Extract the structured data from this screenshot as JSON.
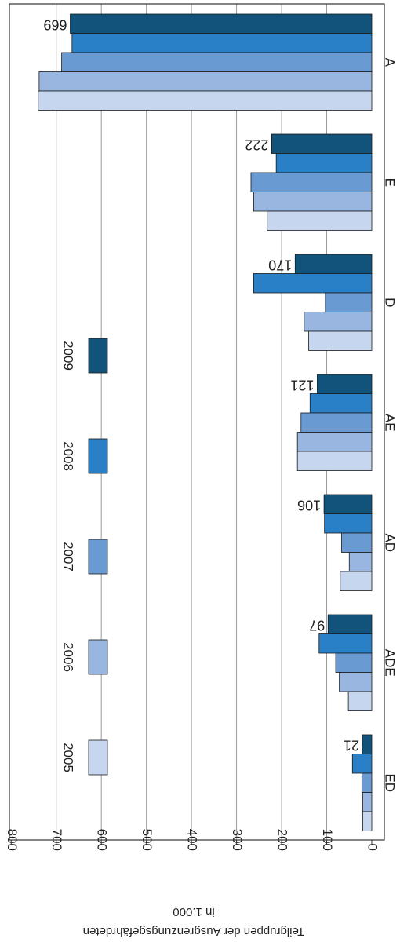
{
  "chart_data": {
    "type": "bar",
    "orientation": "horizontal, image rotated",
    "ylabel": "Teilgruppen der Ausgrenzungsgefährdeten",
    "ylabel_unit": "in 1.000",
    "categories": [
      "A",
      "E",
      "D",
      "AE",
      "AD",
      "ADE",
      "ED"
    ],
    "xlim": [
      0,
      800
    ],
    "x_ticks": [
      0,
      100,
      200,
      300,
      400,
      500,
      600,
      700,
      800
    ],
    "grid": true,
    "legend_placement": "inside, center-left",
    "series": [
      {
        "name": "2005",
        "color": "#c6d6ef",
        "values": [
          740,
          232,
          140,
          165,
          70,
          52,
          20
        ]
      },
      {
        "name": "2006",
        "color": "#98b6e0",
        "values": [
          738,
          262,
          150,
          165,
          50,
          72,
          20
        ]
      },
      {
        "name": "2007",
        "color": "#6a9ad2",
        "values": [
          688,
          268,
          103,
          157,
          67,
          80,
          22
        ]
      },
      {
        "name": "2008",
        "color": "#2a80c6",
        "values": [
          665,
          212,
          262,
          137,
          105,
          117,
          43
        ]
      },
      {
        "name": "2009",
        "color": "#12537c",
        "values": [
          669,
          222,
          170,
          121,
          106,
          97,
          21
        ]
      }
    ],
    "data_labels": [
      "669",
      "222",
      "170",
      "121",
      "106",
      "97",
      "21"
    ]
  }
}
